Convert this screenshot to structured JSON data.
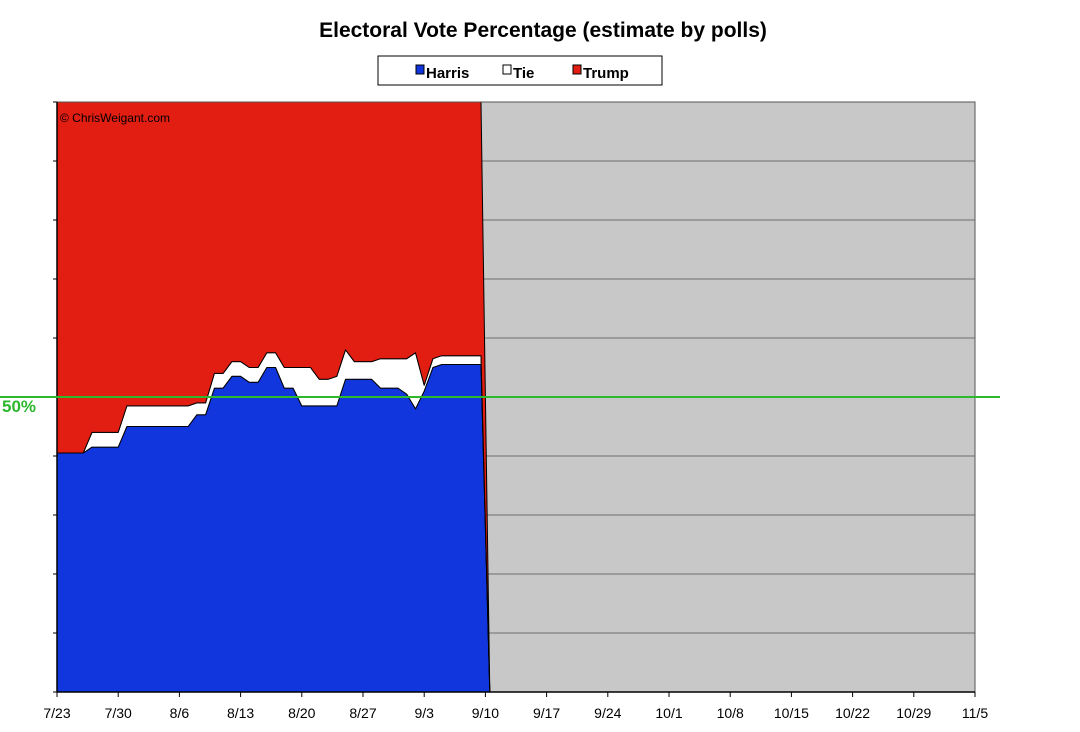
{
  "chart_data": {
    "type": "area",
    "title": "Electoral Vote Percentage (estimate by polls)",
    "credit": "© ChrisWeigant.com",
    "x_tick_labels": [
      "7/23",
      "7/30",
      "8/6",
      "8/13",
      "8/20",
      "8/27",
      "9/3",
      "9/10",
      "9/17",
      "9/24",
      "10/1",
      "10/8",
      "10/15",
      "10/22",
      "10/29",
      "11/5"
    ],
    "x_range_days": [
      0,
      105
    ],
    "ylim": [
      0,
      100
    ],
    "y_tick_step": 10,
    "stacking": "stacked-100-percent",
    "grid": "horizontal",
    "legend_position": "top-center",
    "legend": [
      {
        "name": "Harris",
        "color": "#1236dd"
      },
      {
        "name": "Tie",
        "color": "#ffffff"
      },
      {
        "name": "Trump",
        "color": "#e21e12"
      }
    ],
    "plot_background_empty": "#c8c8c8",
    "reference_line": {
      "value": 50,
      "label": "50%",
      "color": "#2db82d"
    },
    "series": [
      {
        "name": "Harris",
        "color": "#1236dd",
        "x": [
          0,
          3,
          4,
          7,
          8,
          11,
          12,
          15,
          16,
          17,
          18,
          19,
          20,
          21,
          22,
          23,
          24,
          25,
          26,
          27,
          28,
          29,
          30,
          31,
          32,
          33,
          34,
          35,
          36,
          37,
          38,
          39,
          40,
          41,
          42,
          43,
          44,
          45,
          46,
          47,
          48,
          48.5,
          49.5
        ],
        "y": [
          40.5,
          40.5,
          41.5,
          41.5,
          45,
          45,
          45,
          45,
          47,
          47,
          51.5,
          51.5,
          53.5,
          53.5,
          52.5,
          52.5,
          55,
          55,
          51.5,
          51.5,
          48.5,
          48.5,
          48.5,
          48.5,
          48.5,
          53,
          53,
          53,
          53,
          51.5,
          51.5,
          51.5,
          50.5,
          48,
          51,
          55,
          55.5,
          55.5,
          55.5,
          55.5,
          55.5,
          55.5,
          0
        ]
      },
      {
        "name": "Tie",
        "color": "#ffffff",
        "x": [
          0,
          3,
          4,
          7,
          8,
          11,
          12,
          15,
          16,
          17,
          18,
          19,
          20,
          21,
          22,
          23,
          24,
          25,
          26,
          27,
          28,
          29,
          30,
          31,
          32,
          33,
          34,
          35,
          36,
          37,
          38,
          39,
          40,
          41,
          42,
          43,
          44,
          45,
          46,
          47,
          48,
          48.5,
          49.5
        ],
        "y": [
          0,
          0,
          2.5,
          2.5,
          3.5,
          3.5,
          3.5,
          3.5,
          2,
          2,
          2.5,
          2.5,
          2.5,
          2.5,
          2.5,
          2.5,
          2.5,
          2.5,
          3.5,
          3.5,
          6.5,
          6.5,
          4.5,
          4.5,
          5,
          5,
          3,
          3,
          3,
          5,
          5,
          5,
          6,
          9.5,
          1,
          1.5,
          1.5,
          1.5,
          1.5,
          1.5,
          1.5,
          1.5,
          0
        ]
      },
      {
        "name": "Trump",
        "color": "#e21e12",
        "x": [
          0,
          3,
          4,
          7,
          8,
          11,
          12,
          15,
          16,
          17,
          18,
          19,
          20,
          21,
          22,
          23,
          24,
          25,
          26,
          27,
          28,
          29,
          30,
          31,
          32,
          33,
          34,
          35,
          36,
          37,
          38,
          39,
          40,
          41,
          42,
          43,
          44,
          45,
          46,
          47,
          48,
          48.5,
          49.5
        ],
        "y": [
          59.5,
          59.5,
          56,
          56,
          51.5,
          51.5,
          51.5,
          51.5,
          51,
          51,
          46,
          46,
          44,
          44,
          45,
          45,
          42.5,
          42.5,
          45,
          45,
          45,
          45,
          47,
          47,
          46.5,
          42,
          44,
          44,
          44,
          43.5,
          43.5,
          43.5,
          43.5,
          42.5,
          48,
          43.5,
          43,
          43,
          43,
          43,
          43,
          43,
          0
        ]
      }
    ]
  }
}
